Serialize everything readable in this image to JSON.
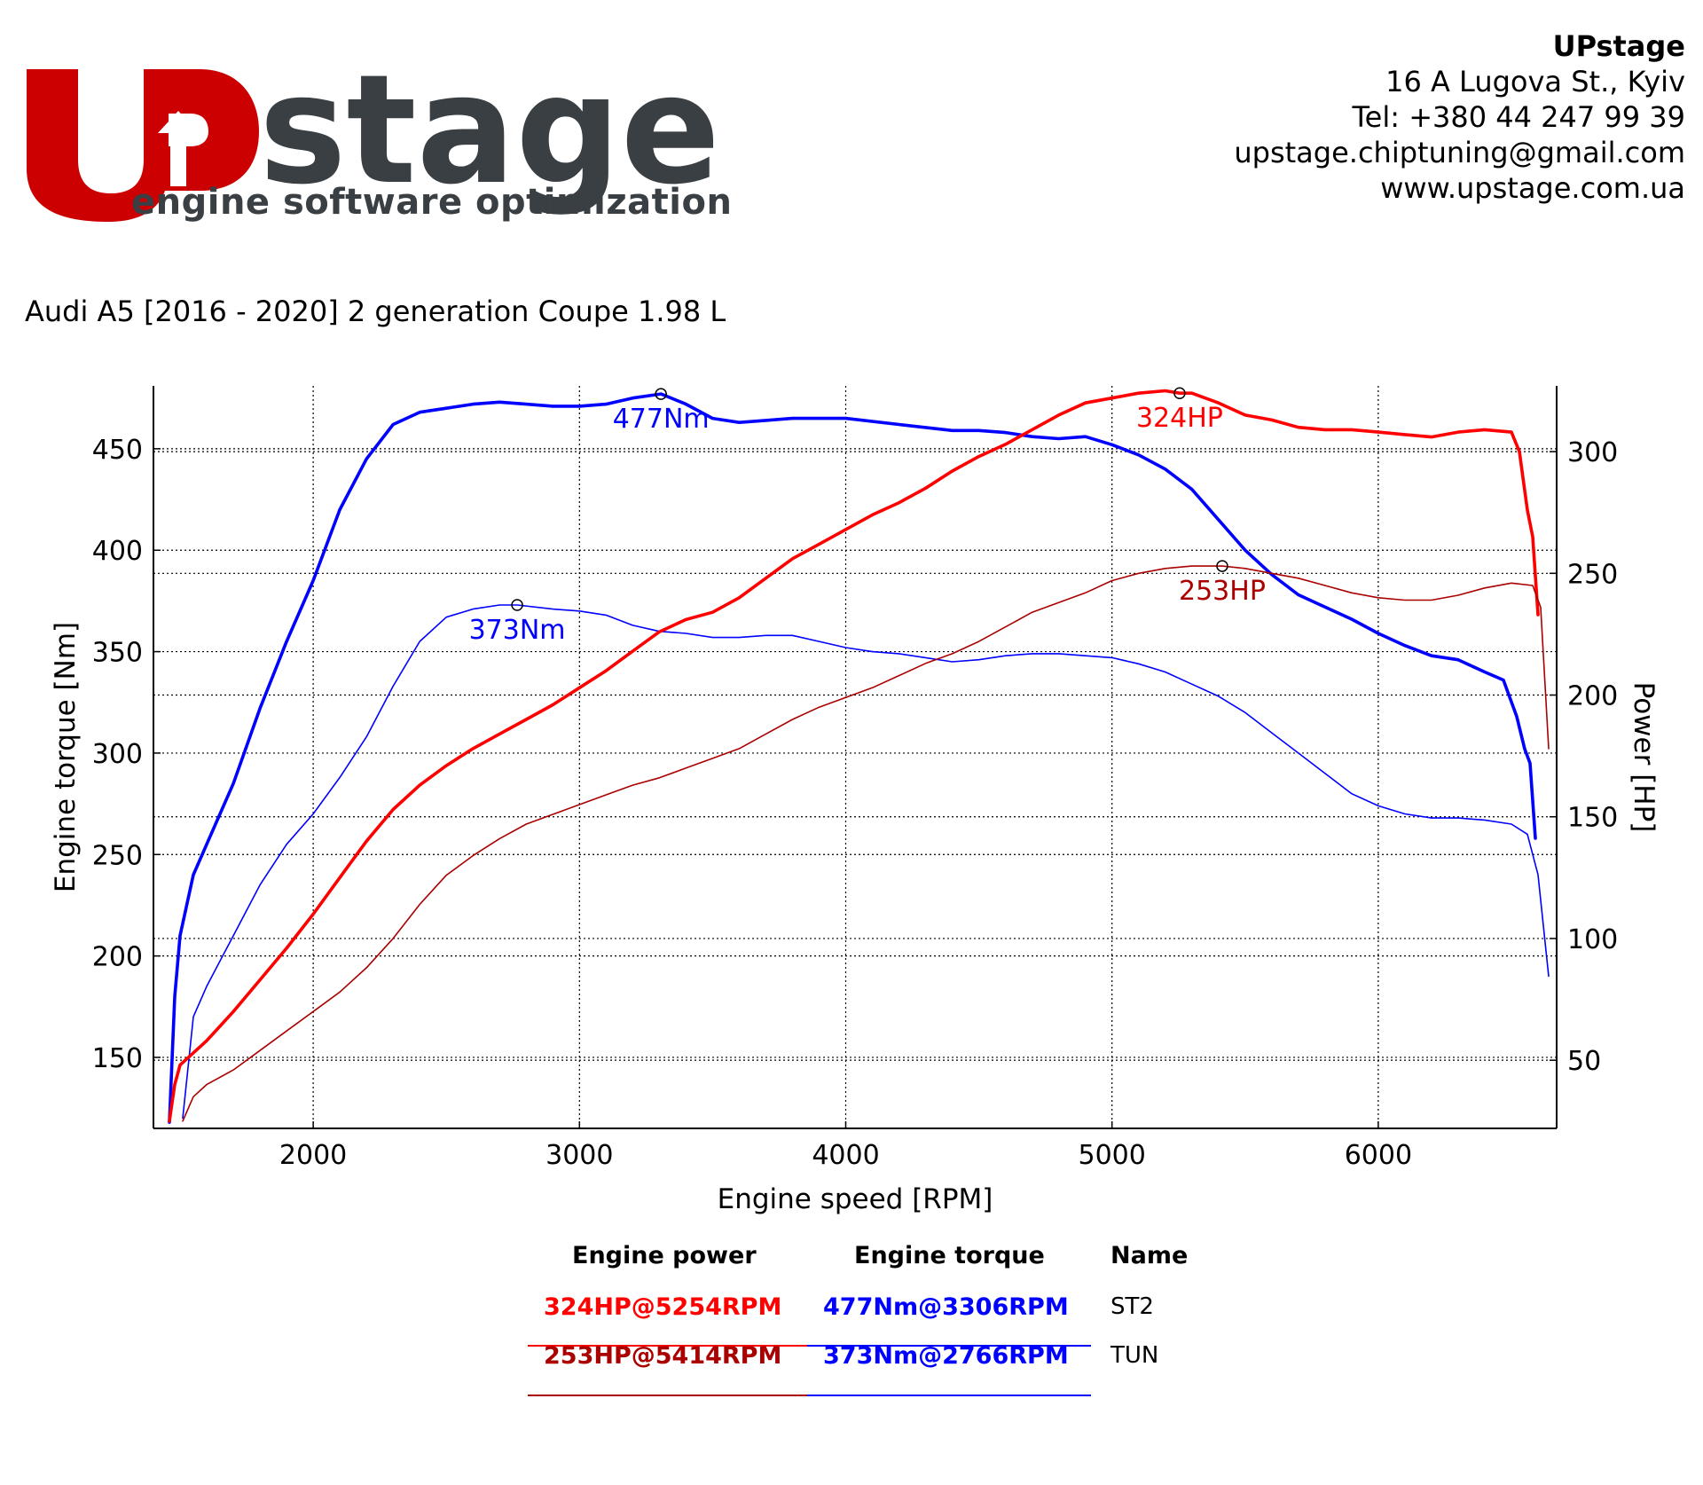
{
  "header": {
    "logo": {
      "wordmark": "UPstage",
      "tagline": "engine software optimization",
      "colors": {
        "red": "#cc0000",
        "dark": "#3a3f44"
      }
    },
    "contact": {
      "company": "UPstage",
      "address": "16 A Lugova St., Kyiv",
      "phone": "Tel: +380 44 247 99 39",
      "email": "upstage.chiptuning@gmail.com",
      "website": "www.upstage.com.ua"
    },
    "car_title": "Audi A5 [2016 - 2020] 2 generation Coupe 1.98 L"
  },
  "chart_data": {
    "type": "line",
    "xlabel": "Engine speed [RPM]",
    "ylabel_left": "Engine torque [Nm]",
    "ylabel_right": "Power [HP]",
    "xlim": [
      1400,
      6670
    ],
    "ylim_left": [
      115,
      481
    ],
    "ylim_right": [
      22,
      327
    ],
    "xticks": [
      2000,
      3000,
      4000,
      5000,
      6000
    ],
    "yticks_left": [
      150,
      200,
      250,
      300,
      350,
      400,
      450
    ],
    "yticks_right": [
      50,
      100,
      150,
      200,
      250,
      300
    ],
    "grid": "dotted",
    "series": [
      {
        "name": "ST2",
        "quantity": "torque",
        "axis": "left",
        "color": "#0000ff",
        "bold": true,
        "peak": {
          "x": 3306,
          "y": 477,
          "label": "477Nm"
        },
        "points": [
          [
            1460,
            118
          ],
          [
            1480,
            180
          ],
          [
            1500,
            210
          ],
          [
            1550,
            240
          ],
          [
            1600,
            255
          ],
          [
            1700,
            285
          ],
          [
            1800,
            322
          ],
          [
            1900,
            355
          ],
          [
            2000,
            385
          ],
          [
            2100,
            420
          ],
          [
            2200,
            445
          ],
          [
            2300,
            462
          ],
          [
            2400,
            468
          ],
          [
            2500,
            470
          ],
          [
            2600,
            472
          ],
          [
            2700,
            473
          ],
          [
            2800,
            472
          ],
          [
            2900,
            471
          ],
          [
            3000,
            471
          ],
          [
            3100,
            472
          ],
          [
            3200,
            475
          ],
          [
            3306,
            477
          ],
          [
            3400,
            472
          ],
          [
            3500,
            465
          ],
          [
            3600,
            463
          ],
          [
            3700,
            464
          ],
          [
            3800,
            465
          ],
          [
            4000,
            465
          ],
          [
            4200,
            462
          ],
          [
            4400,
            459
          ],
          [
            4500,
            459
          ],
          [
            4600,
            458
          ],
          [
            4700,
            456
          ],
          [
            4800,
            455
          ],
          [
            4900,
            456
          ],
          [
            5000,
            452
          ],
          [
            5100,
            447
          ],
          [
            5200,
            440
          ],
          [
            5300,
            430
          ],
          [
            5400,
            415
          ],
          [
            5500,
            400
          ],
          [
            5600,
            388
          ],
          [
            5700,
            378
          ],
          [
            5800,
            372
          ],
          [
            5900,
            366
          ],
          [
            6000,
            359
          ],
          [
            6100,
            353
          ],
          [
            6200,
            348
          ],
          [
            6300,
            346
          ],
          [
            6400,
            340
          ],
          [
            6470,
            336
          ],
          [
            6520,
            318
          ],
          [
            6550,
            302
          ],
          [
            6570,
            295
          ],
          [
            6590,
            258
          ]
        ]
      },
      {
        "name": "TUN",
        "quantity": "torque",
        "axis": "left",
        "color": "#0000ff",
        "bold": false,
        "peak": {
          "x": 2766,
          "y": 373,
          "label": "373Nm"
        },
        "points": [
          [
            1510,
            120
          ],
          [
            1550,
            170
          ],
          [
            1600,
            185
          ],
          [
            1700,
            210
          ],
          [
            1800,
            235
          ],
          [
            1900,
            255
          ],
          [
            2000,
            270
          ],
          [
            2100,
            288
          ],
          [
            2200,
            308
          ],
          [
            2300,
            333
          ],
          [
            2400,
            355
          ],
          [
            2500,
            367
          ],
          [
            2600,
            371
          ],
          [
            2700,
            373
          ],
          [
            2766,
            373
          ],
          [
            2900,
            371
          ],
          [
            3000,
            370
          ],
          [
            3100,
            368
          ],
          [
            3200,
            363
          ],
          [
            3300,
            360
          ],
          [
            3400,
            359
          ],
          [
            3500,
            357
          ],
          [
            3600,
            357
          ],
          [
            3700,
            358
          ],
          [
            3800,
            358
          ],
          [
            3900,
            355
          ],
          [
            4000,
            352
          ],
          [
            4100,
            350
          ],
          [
            4200,
            349
          ],
          [
            4300,
            347
          ],
          [
            4400,
            345
          ],
          [
            4500,
            346
          ],
          [
            4600,
            348
          ],
          [
            4700,
            349
          ],
          [
            4800,
            349
          ],
          [
            5000,
            347
          ],
          [
            5100,
            344
          ],
          [
            5200,
            340
          ],
          [
            5300,
            334
          ],
          [
            5400,
            328
          ],
          [
            5500,
            320
          ],
          [
            5600,
            310
          ],
          [
            5700,
            300
          ],
          [
            5800,
            290
          ],
          [
            5900,
            280
          ],
          [
            6000,
            274
          ],
          [
            6100,
            270
          ],
          [
            6200,
            268
          ],
          [
            6300,
            268
          ],
          [
            6400,
            267
          ],
          [
            6500,
            265
          ],
          [
            6560,
            260
          ],
          [
            6600,
            240
          ],
          [
            6640,
            190
          ]
        ]
      },
      {
        "name": "ST2",
        "quantity": "power",
        "axis": "right",
        "color": "#ff0000",
        "bold": true,
        "peak": {
          "x": 5254,
          "y": 324,
          "label": "324HP"
        },
        "points": [
          [
            1460,
            25
          ],
          [
            1480,
            40
          ],
          [
            1500,
            48
          ],
          [
            1600,
            58
          ],
          [
            1700,
            70
          ],
          [
            1800,
            83
          ],
          [
            1900,
            96
          ],
          [
            2000,
            110
          ],
          [
            2100,
            125
          ],
          [
            2200,
            140
          ],
          [
            2300,
            153
          ],
          [
            2400,
            163
          ],
          [
            2500,
            171
          ],
          [
            2600,
            178
          ],
          [
            2700,
            184
          ],
          [
            2800,
            190
          ],
          [
            2900,
            196
          ],
          [
            3000,
            203
          ],
          [
            3100,
            210
          ],
          [
            3200,
            218
          ],
          [
            3300,
            226
          ],
          [
            3400,
            231
          ],
          [
            3500,
            234
          ],
          [
            3600,
            240
          ],
          [
            3700,
            248
          ],
          [
            3800,
            256
          ],
          [
            3900,
            262
          ],
          [
            4000,
            268
          ],
          [
            4100,
            274
          ],
          [
            4200,
            279
          ],
          [
            4300,
            285
          ],
          [
            4400,
            292
          ],
          [
            4500,
            298
          ],
          [
            4600,
            303
          ],
          [
            4700,
            309
          ],
          [
            4800,
            315
          ],
          [
            4900,
            320
          ],
          [
            5000,
            322
          ],
          [
            5100,
            324
          ],
          [
            5200,
            325
          ],
          [
            5254,
            324
          ],
          [
            5300,
            324
          ],
          [
            5400,
            320
          ],
          [
            5500,
            315
          ],
          [
            5600,
            313
          ],
          [
            5700,
            310
          ],
          [
            5800,
            309
          ],
          [
            5900,
            309
          ],
          [
            6000,
            308
          ],
          [
            6100,
            307
          ],
          [
            6200,
            306
          ],
          [
            6300,
            308
          ],
          [
            6400,
            309
          ],
          [
            6500,
            308
          ],
          [
            6530,
            300
          ],
          [
            6560,
            276
          ],
          [
            6580,
            265
          ],
          [
            6600,
            233
          ]
        ]
      },
      {
        "name": "TUN",
        "quantity": "power",
        "axis": "right",
        "color": "#aa0000",
        "bold": false,
        "peak": {
          "x": 5414,
          "y": 253,
          "label": "253HP"
        },
        "points": [
          [
            1510,
            25
          ],
          [
            1550,
            35
          ],
          [
            1600,
            40
          ],
          [
            1700,
            46
          ],
          [
            1800,
            54
          ],
          [
            1900,
            62
          ],
          [
            2000,
            70
          ],
          [
            2100,
            78
          ],
          [
            2200,
            88
          ],
          [
            2300,
            100
          ],
          [
            2400,
            114
          ],
          [
            2500,
            126
          ],
          [
            2600,
            134
          ],
          [
            2700,
            141
          ],
          [
            2800,
            147
          ],
          [
            2900,
            151
          ],
          [
            3000,
            155
          ],
          [
            3100,
            159
          ],
          [
            3200,
            163
          ],
          [
            3300,
            166
          ],
          [
            3400,
            170
          ],
          [
            3500,
            174
          ],
          [
            3600,
            178
          ],
          [
            3700,
            184
          ],
          [
            3800,
            190
          ],
          [
            3900,
            195
          ],
          [
            4000,
            199
          ],
          [
            4100,
            203
          ],
          [
            4200,
            208
          ],
          [
            4300,
            213
          ],
          [
            4400,
            217
          ],
          [
            4500,
            222
          ],
          [
            4600,
            228
          ],
          [
            4700,
            234
          ],
          [
            4800,
            238
          ],
          [
            4900,
            242
          ],
          [
            5000,
            247
          ],
          [
            5100,
            250
          ],
          [
            5200,
            252
          ],
          [
            5300,
            253
          ],
          [
            5414,
            253
          ],
          [
            5500,
            252
          ],
          [
            5600,
            250
          ],
          [
            5700,
            248
          ],
          [
            5800,
            245
          ],
          [
            5900,
            242
          ],
          [
            6000,
            240
          ],
          [
            6100,
            239
          ],
          [
            6200,
            239
          ],
          [
            6300,
            241
          ],
          [
            6400,
            244
          ],
          [
            6500,
            246
          ],
          [
            6580,
            245
          ],
          [
            6610,
            236
          ],
          [
            6640,
            178
          ]
        ]
      }
    ]
  },
  "results": {
    "headers": {
      "power": "Engine power",
      "torque": "Engine torque",
      "name": "Name"
    },
    "rows": [
      {
        "power": "324HP@5254RPM",
        "torque": "477Nm@3306RPM",
        "name": "ST2",
        "power_color": "#ff0000",
        "torque_color": "#0000ff"
      },
      {
        "power": "253HP@5414RPM",
        "torque": "373Nm@2766RPM",
        "name": "TUN",
        "power_color": "#aa0000",
        "torque_color": "#0000ff"
      }
    ]
  }
}
